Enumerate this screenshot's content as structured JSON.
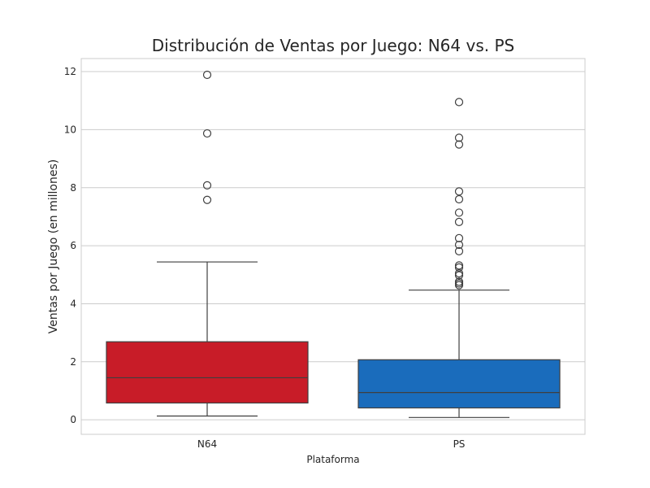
{
  "chart_data": {
    "type": "box",
    "title": "Distribución de Ventas por Juego: N64 vs. PS",
    "xlabel": "Plataforma",
    "ylabel": "Ventas por Juego (en millones)",
    "categories": [
      "N64",
      "PS"
    ],
    "ylim": [
      -0.5,
      12.45
    ],
    "yticks": [
      0,
      2,
      4,
      6,
      8,
      10,
      12
    ],
    "grid": true,
    "boxes": [
      {
        "name": "N64",
        "color": "#c81c28",
        "whisker_low": 0.13,
        "q1": 0.58,
        "median": 1.45,
        "q3": 2.69,
        "whisker_high": 5.44,
        "outliers": [
          7.58,
          8.08,
          9.87,
          11.89
        ]
      },
      {
        "name": "PS",
        "color": "#1a6cbc",
        "whisker_low": 0.08,
        "q1": 0.41,
        "median": 0.94,
        "q3": 2.07,
        "whisker_high": 4.47,
        "outliers": [
          4.64,
          4.7,
          4.76,
          4.98,
          5.05,
          5.25,
          5.32,
          5.81,
          6.03,
          6.26,
          6.82,
          7.14,
          7.6,
          7.87,
          9.49,
          9.72,
          10.95
        ]
      }
    ]
  }
}
